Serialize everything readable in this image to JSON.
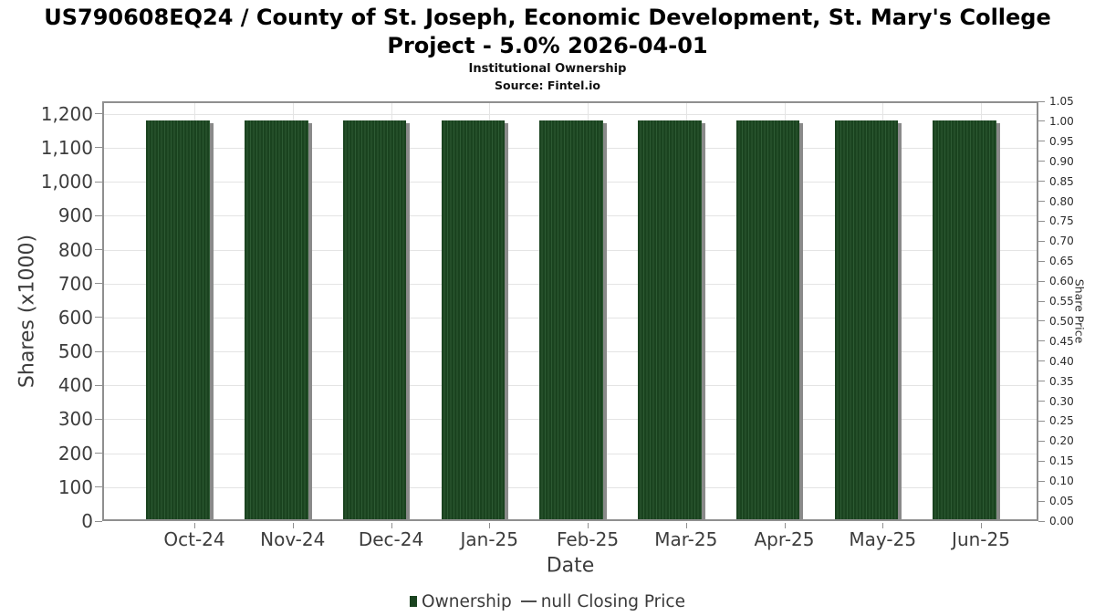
{
  "header": {
    "title": "US790608EQ24 / County of St. Joseph, Economic Development, St. Mary's College Project - 5.0% 2026-04-01",
    "subtitle": "Institutional Ownership",
    "source": "Source: Fintel.io"
  },
  "chart_data": {
    "type": "bar",
    "title": "US790608EQ24 / County of St. Joseph, Economic Development, St. Mary's College Project - 5.0% 2026-04-01",
    "subtitle": "Institutional Ownership",
    "source": "Source: Fintel.io",
    "categories": [
      "Oct-24",
      "Nov-24",
      "Dec-24",
      "Jan-25",
      "Feb-25",
      "Mar-25",
      "Apr-25",
      "May-25",
      "Jun-25"
    ],
    "series": [
      {
        "name": "Ownership",
        "axis": "left",
        "values": [
          1180,
          1180,
          1180,
          1180,
          1180,
          1180,
          1180,
          1180,
          1180
        ]
      },
      {
        "name": "null Closing Price",
        "axis": "right",
        "values": []
      }
    ],
    "xlabel": "Date",
    "ylabel_left": "Shares (x1000)",
    "ylabel_right": "Share Price",
    "ylim_left": [
      0,
      1237
    ],
    "ylim_right": [
      0,
      1.05
    ],
    "yticks_left": [
      0,
      100,
      200,
      300,
      400,
      500,
      600,
      700,
      800,
      900,
      1000,
      1100,
      1200
    ],
    "yticks_right": [
      0,
      0.05,
      0.1,
      0.15,
      0.2,
      0.25,
      0.3,
      0.35,
      0.4,
      0.45,
      0.5,
      0.55,
      0.6,
      0.65,
      0.7,
      0.75,
      0.8,
      0.85,
      0.9,
      0.95,
      1,
      1.05
    ],
    "grid": true,
    "legend_position": "bottom"
  },
  "legend": {
    "items": [
      {
        "label": "Ownership",
        "marker": "square"
      },
      {
        "label": "null Closing Price",
        "marker": "line"
      }
    ]
  },
  "colors": {
    "bar_fill": "#1a431f",
    "bar_stripe": "#2d5a33",
    "bar_shadow": "#8a8a8a",
    "grid": "#e4e4e4",
    "axis": "#8f8f8f",
    "text": "#3d3d3d"
  }
}
